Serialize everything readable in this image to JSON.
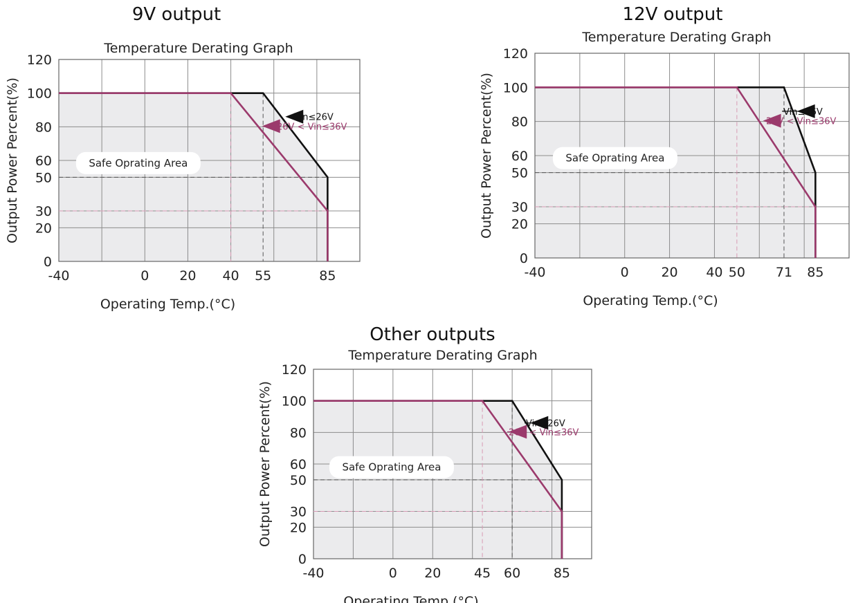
{
  "colors": {
    "safe_fill": "#ebebed",
    "grid": "#8c8c8c",
    "black_curve": "#111111",
    "magenta_curve": "#9b3a6c",
    "dash_gray": "#555555",
    "dash_pink": "#d79ab4"
  },
  "chart_data": [
    {
      "type": "line",
      "heading": "9V output",
      "title": "Temperature Derating Graph",
      "xlabel": "Operating Temp.(°C)",
      "ylabel": "Output Power Percent(%)",
      "x_ticks": [
        -40,
        0,
        20,
        40,
        55,
        85
      ],
      "y_ticks": [
        0,
        20,
        30,
        50,
        60,
        80,
        100,
        120
      ],
      "xlim": [
        -40,
        100
      ],
      "ylim": [
        0,
        120
      ],
      "grid": true,
      "safe_area_label": "Safe Oprating Area",
      "series": [
        {
          "name": "Vin≤26V",
          "color": "#111111",
          "points": [
            [
              -40,
              100
            ],
            [
              55,
              100
            ],
            [
              85,
              50
            ],
            [
              85,
              0
            ]
          ]
        },
        {
          "name": "26V < Vin≤36V",
          "color": "#9b3a6c",
          "points": [
            [
              -40,
              100
            ],
            [
              40,
              100
            ],
            [
              85,
              30
            ],
            [
              85,
              0
            ]
          ]
        }
      ]
    },
    {
      "type": "line",
      "heading": "12V output",
      "title": "Temperature Derating Graph",
      "xlabel": "Operating Temp.(°C)",
      "ylabel": "Output Power Percent(%)",
      "x_ticks": [
        -40,
        0,
        20,
        40,
        50,
        71,
        85
      ],
      "y_ticks": [
        0,
        20,
        30,
        50,
        60,
        80,
        100,
        120
      ],
      "xlim": [
        -40,
        100
      ],
      "ylim": [
        0,
        120
      ],
      "grid": true,
      "safe_area_label": "Safe Oprating Area",
      "series": [
        {
          "name": "Vin≤26V",
          "color": "#111111",
          "points": [
            [
              -40,
              100
            ],
            [
              71,
              100
            ],
            [
              85,
              50
            ],
            [
              85,
              0
            ]
          ]
        },
        {
          "name": "26V < Vin≤36V",
          "color": "#9b3a6c",
          "points": [
            [
              -40,
              100
            ],
            [
              50,
              100
            ],
            [
              85,
              30
            ],
            [
              85,
              0
            ]
          ]
        }
      ]
    },
    {
      "type": "line",
      "heading": "Other outputs",
      "title": "Temperature Derating Graph",
      "xlabel": "Operating Temp.(°C)",
      "ylabel": "Output Power Percent(%)",
      "x_ticks": [
        -40,
        0,
        20,
        45,
        60,
        85
      ],
      "y_ticks": [
        0,
        20,
        30,
        50,
        60,
        80,
        100,
        120
      ],
      "xlim": [
        -40,
        100
      ],
      "ylim": [
        0,
        120
      ],
      "grid": true,
      "safe_area_label": "Safe Oprating Area",
      "series": [
        {
          "name": "Vin≤26V",
          "color": "#111111",
          "points": [
            [
              -40,
              100
            ],
            [
              60,
              100
            ],
            [
              85,
              50
            ],
            [
              85,
              0
            ]
          ]
        },
        {
          "name": "26V < Vin≤36V",
          "color": "#9b3a6c",
          "points": [
            [
              -40,
              100
            ],
            [
              45,
              100
            ],
            [
              85,
              30
            ],
            [
              85,
              0
            ]
          ]
        }
      ]
    }
  ]
}
